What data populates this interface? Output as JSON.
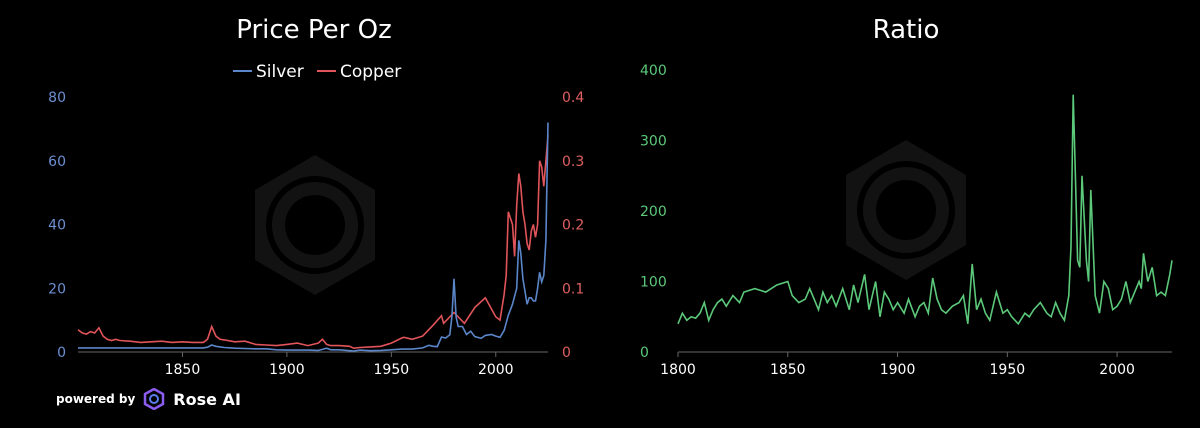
{
  "chart_data": [
    {
      "type": "line",
      "title": "Price Per Oz",
      "xlabel": "",
      "ylabel": "",
      "xlim": [
        1800,
        2025
      ],
      "x_ticks": [
        1850,
        1900,
        1950,
        2000
      ],
      "ylim_left": [
        0,
        80
      ],
      "y_ticks_left": [
        0,
        20,
        40,
        60,
        80
      ],
      "ylim_right": [
        0,
        0.4
      ],
      "y_ticks_right": [
        0,
        0.1,
        0.2,
        0.3,
        0.4
      ],
      "legend": "top-center",
      "grid": false,
      "colors": {
        "silver": "#5b86c9",
        "copper": "#e0545a",
        "axis": "#666666",
        "tick_left": "#6c8fd0",
        "tick_right": "#e06060"
      },
      "series": [
        {
          "name": "Silver",
          "axis": "left",
          "x": [
            1800,
            1805,
            1810,
            1815,
            1820,
            1825,
            1830,
            1835,
            1840,
            1845,
            1850,
            1855,
            1860,
            1862,
            1864,
            1866,
            1868,
            1870,
            1875,
            1880,
            1885,
            1890,
            1895,
            1900,
            1905,
            1910,
            1915,
            1917,
            1919,
            1921,
            1925,
            1930,
            1932,
            1935,
            1940,
            1945,
            1950,
            1955,
            1960,
            1965,
            1968,
            1970,
            1972,
            1974,
            1976,
            1978,
            1979,
            1980,
            1981,
            1982,
            1984,
            1986,
            1988,
            1990,
            1993,
            1995,
            1998,
            2000,
            2002,
            2004,
            2006,
            2008,
            2010,
            2011,
            2012,
            2013,
            2014,
            2015,
            2016,
            2017,
            2018,
            2019,
            2020,
            2021,
            2022,
            2023,
            2024,
            2025
          ],
          "y": [
            1.3,
            1.3,
            1.3,
            1.3,
            1.3,
            1.3,
            1.3,
            1.3,
            1.3,
            1.3,
            1.3,
            1.3,
            1.3,
            1.5,
            2.2,
            1.8,
            1.6,
            1.4,
            1.2,
            1.1,
            1.0,
            1.0,
            0.7,
            0.6,
            0.6,
            0.6,
            0.5,
            0.8,
            1.2,
            0.7,
            0.7,
            0.4,
            0.3,
            0.6,
            0.4,
            0.5,
            0.7,
            0.9,
            0.9,
            1.3,
            2.1,
            1.8,
            1.7,
            4.7,
            4.4,
            5.4,
            11,
            23,
            11,
            8,
            8,
            5.5,
            6.5,
            4.8,
            4.3,
            5.2,
            5.5,
            5,
            4.6,
            6.7,
            11.5,
            15,
            20,
            35,
            31,
            23,
            19,
            15,
            17,
            17,
            16,
            16,
            20,
            25,
            22,
            24,
            35,
            72
          ]
        },
        {
          "name": "Copper",
          "axis": "right",
          "x": [
            1800,
            1802,
            1804,
            1806,
            1808,
            1810,
            1812,
            1814,
            1816,
            1818,
            1820,
            1825,
            1830,
            1835,
            1840,
            1845,
            1850,
            1855,
            1860,
            1862,
            1864,
            1866,
            1868,
            1870,
            1875,
            1880,
            1885,
            1890,
            1895,
            1900,
            1905,
            1910,
            1915,
            1917,
            1919,
            1921,
            1925,
            1930,
            1932,
            1935,
            1940,
            1945,
            1950,
            1955,
            1956,
            1960,
            1965,
            1970,
            1974,
            1975,
            1980,
            1985,
            1990,
            1995,
            2000,
            2002,
            2004,
            2005,
            2006,
            2008,
            2009,
            2010,
            2011,
            2012,
            2013,
            2014,
            2015,
            2016,
            2017,
            2018,
            2019,
            2020,
            2021,
            2022,
            2023,
            2024,
            2025
          ],
          "y": [
            0.035,
            0.03,
            0.028,
            0.032,
            0.03,
            0.038,
            0.025,
            0.02,
            0.018,
            0.02,
            0.018,
            0.017,
            0.015,
            0.016,
            0.017,
            0.015,
            0.016,
            0.015,
            0.015,
            0.02,
            0.04,
            0.025,
            0.02,
            0.019,
            0.016,
            0.017,
            0.012,
            0.011,
            0.01,
            0.012,
            0.014,
            0.01,
            0.014,
            0.02,
            0.012,
            0.01,
            0.01,
            0.009,
            0.006,
            0.007,
            0.008,
            0.009,
            0.014,
            0.022,
            0.023,
            0.02,
            0.025,
            0.042,
            0.057,
            0.045,
            0.062,
            0.045,
            0.07,
            0.085,
            0.055,
            0.05,
            0.09,
            0.12,
            0.22,
            0.2,
            0.15,
            0.23,
            0.28,
            0.26,
            0.22,
            0.2,
            0.17,
            0.16,
            0.19,
            0.2,
            0.18,
            0.2,
            0.3,
            0.29,
            0.26,
            0.3,
            0.34
          ]
        }
      ]
    },
    {
      "type": "line",
      "title": "Ratio",
      "xlabel": "",
      "ylabel": "",
      "xlim": [
        1800,
        2025
      ],
      "x_ticks": [
        1800,
        1850,
        1900,
        1950,
        2000
      ],
      "ylim": [
        0,
        400
      ],
      "y_ticks": [
        0,
        100,
        200,
        300,
        400
      ],
      "legend": "none",
      "grid": false,
      "colors": {
        "line": "#5cc97a",
        "tick": "#5cc97a",
        "axis": "#666666"
      },
      "series": [
        {
          "name": "",
          "x": [
            1800,
            1802,
            1804,
            1806,
            1808,
            1810,
            1812,
            1814,
            1816,
            1818,
            1820,
            1822,
            1825,
            1828,
            1830,
            1835,
            1840,
            1845,
            1850,
            1852,
            1855,
            1858,
            1860,
            1862,
            1864,
            1866,
            1868,
            1870,
            1872,
            1875,
            1878,
            1880,
            1882,
            1885,
            1887,
            1890,
            1892,
            1894,
            1896,
            1898,
            1900,
            1903,
            1905,
            1908,
            1910,
            1912,
            1914,
            1916,
            1918,
            1920,
            1922,
            1925,
            1928,
            1930,
            1932,
            1934,
            1936,
            1938,
            1940,
            1942,
            1945,
            1948,
            1950,
            1952,
            1955,
            1958,
            1960,
            1962,
            1965,
            1968,
            1970,
            1972,
            1974,
            1976,
            1978,
            1979,
            1980,
            1981,
            1982,
            1983,
            1984,
            1985,
            1986,
            1987,
            1988,
            1990,
            1992,
            1994,
            1996,
            1998,
            2000,
            2002,
            2004,
            2006,
            2008,
            2010,
            2011,
            2012,
            2014,
            2016,
            2018,
            2020,
            2022,
            2024,
            2025
          ],
          "y": [
            40,
            55,
            45,
            50,
            48,
            55,
            70,
            45,
            60,
            70,
            75,
            65,
            80,
            70,
            85,
            90,
            85,
            95,
            100,
            80,
            70,
            75,
            90,
            75,
            60,
            85,
            70,
            80,
            65,
            90,
            60,
            95,
            70,
            110,
            60,
            100,
            50,
            85,
            75,
            60,
            70,
            55,
            75,
            50,
            65,
            70,
            55,
            105,
            75,
            60,
            55,
            65,
            70,
            80,
            40,
            125,
            60,
            75,
            55,
            45,
            85,
            55,
            60,
            50,
            40,
            55,
            50,
            60,
            70,
            55,
            50,
            70,
            55,
            45,
            80,
            150,
            365,
            250,
            130,
            120,
            250,
            190,
            130,
            100,
            230,
            80,
            55,
            100,
            90,
            60,
            65,
            75,
            100,
            70,
            85,
            100,
            90,
            140,
            100,
            120,
            80,
            85,
            80,
            110,
            130
          ]
        }
      ]
    }
  ],
  "brand": {
    "prefix": "powered by",
    "name": "Rose AI"
  }
}
